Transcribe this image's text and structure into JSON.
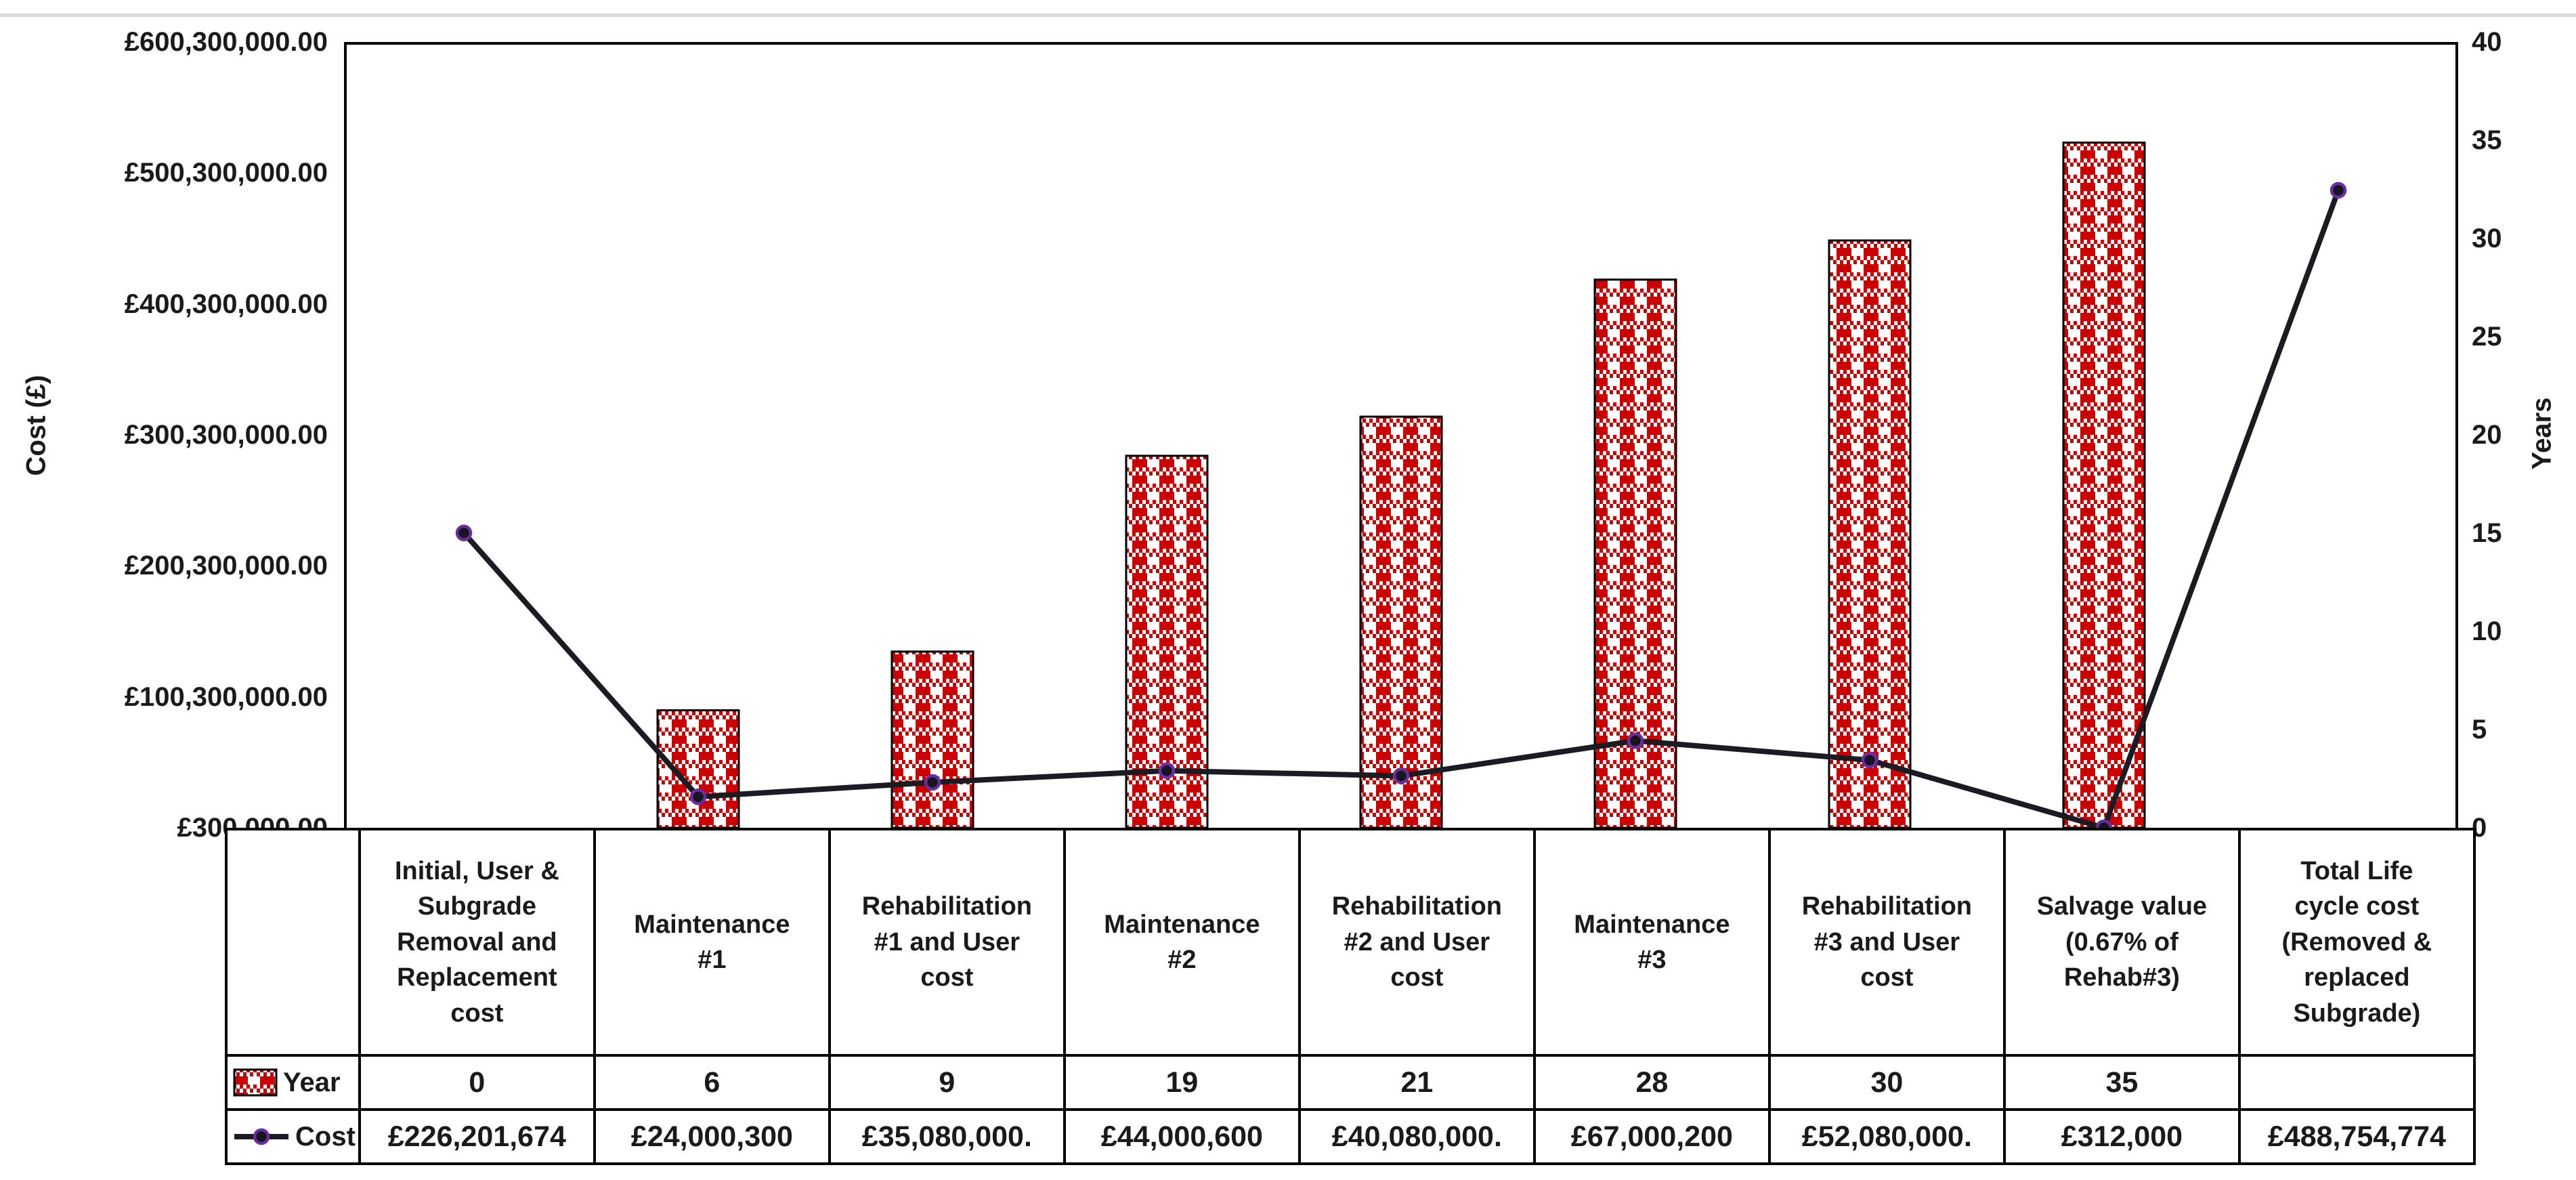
{
  "chart_data": {
    "type": "bar+line",
    "description": "Life cycle cost combo chart: patterned column series (Year, secondary axis) and line series (Cost, primary axis) with data table",
    "categories": [
      "Initial, User &\nSubgrade\nRemoval and\nReplacement\ncost",
      "Maintenance\n#1",
      "Rehabilitation\n#1 and User\ncost",
      "Maintenance\n#2",
      "Rehabilitation\n#2 and User\ncost",
      "Maintenance\n#3",
      "Rehabilitation\n#3 and User\ncost",
      "Salvage value\n(0.67% of\nRehab#3)",
      "Total Life\ncycle cost\n(Removed &\nreplaced\nSubgrade)"
    ],
    "series": [
      {
        "name": "Year",
        "type": "bar",
        "axis": "right",
        "values": [
          0,
          6,
          9,
          19,
          21,
          28,
          30,
          35,
          null
        ],
        "display": [
          "0",
          "6",
          "9",
          "19",
          "21",
          "28",
          "30",
          "35",
          ""
        ]
      },
      {
        "name": "Cost",
        "type": "line",
        "axis": "left",
        "values": [
          226201674,
          24000300,
          35080000,
          44000600,
          40080000,
          67000200,
          52080000,
          312000,
          488754774
        ],
        "display": [
          "£226,201,674",
          "£24,000,300",
          "£35,080,000.",
          "£44,000,600",
          "£40,080,000.",
          "£67,000,200",
          "£52,080,000.",
          "£312,000",
          "£488,754,774"
        ]
      }
    ],
    "left_axis": {
      "label": "Cost (£)",
      "min": 300000,
      "max": 600300000,
      "tick_step": 100000000,
      "tick_labels": [
        "£600,300,000.00",
        "£500,300,000.00",
        "£400,300,000.00",
        "£300,300,000.00",
        "£200,300,000.00",
        "£100,300,000.00",
        "£300,000.00"
      ]
    },
    "right_axis": {
      "label": "Years",
      "min": 0,
      "max": 40,
      "tick_step": 5,
      "tick_labels": [
        "40",
        "35",
        "30",
        "25",
        "20",
        "15",
        "10",
        "5",
        "0"
      ]
    },
    "title": "",
    "grid": "off",
    "legend_position": "table-left-keys",
    "colors": {
      "bar_fill_red": "#CB0000",
      "bar_border": "#000000",
      "line": "#1B1B23",
      "marker_fill": "#16161F",
      "marker_ring": "#6A2DA0",
      "table_border": "#000000",
      "top_rule": "#D9D9D9"
    },
    "icons": {
      "year_swatch": "gingham-pattern-swatch-icon",
      "cost_marker": "line-with-round-marker-icon"
    }
  }
}
